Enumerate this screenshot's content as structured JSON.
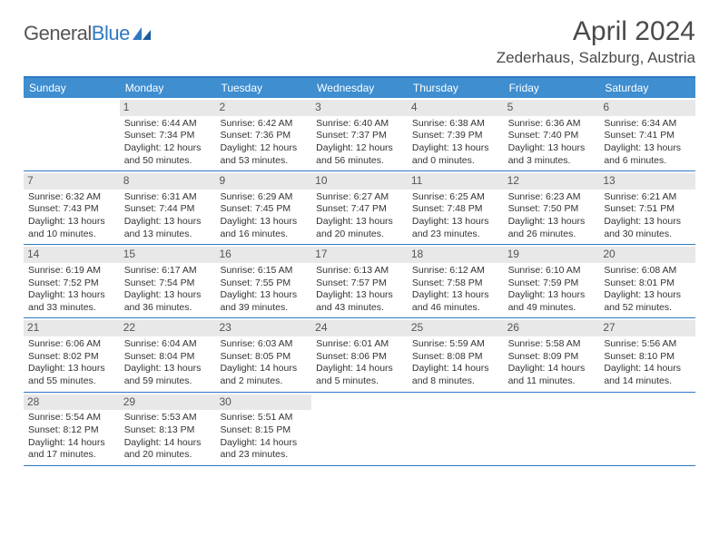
{
  "logo": {
    "part1": "General",
    "part2": "Blue"
  },
  "title": "April 2024",
  "location": "Zederhaus, Salzburg, Austria",
  "weekdays": [
    "Sunday",
    "Monday",
    "Tuesday",
    "Wednesday",
    "Thursday",
    "Friday",
    "Saturday"
  ],
  "colors": {
    "header_bar": "#3e8ed0",
    "accent": "#2f78c4",
    "daynum_bg": "#e8e8e8",
    "text": "#333333",
    "title_text": "#4a4a4a"
  },
  "layout": {
    "cols": 7,
    "rows": 5,
    "start_offset": 1,
    "days_in_month": 30
  },
  "days": [
    {
      "n": 1,
      "sr": "6:44 AM",
      "ss": "7:34 PM",
      "dl": "12 hours and 50 minutes."
    },
    {
      "n": 2,
      "sr": "6:42 AM",
      "ss": "7:36 PM",
      "dl": "12 hours and 53 minutes."
    },
    {
      "n": 3,
      "sr": "6:40 AM",
      "ss": "7:37 PM",
      "dl": "12 hours and 56 minutes."
    },
    {
      "n": 4,
      "sr": "6:38 AM",
      "ss": "7:39 PM",
      "dl": "13 hours and 0 minutes."
    },
    {
      "n": 5,
      "sr": "6:36 AM",
      "ss": "7:40 PM",
      "dl": "13 hours and 3 minutes."
    },
    {
      "n": 6,
      "sr": "6:34 AM",
      "ss": "7:41 PM",
      "dl": "13 hours and 6 minutes."
    },
    {
      "n": 7,
      "sr": "6:32 AM",
      "ss": "7:43 PM",
      "dl": "13 hours and 10 minutes."
    },
    {
      "n": 8,
      "sr": "6:31 AM",
      "ss": "7:44 PM",
      "dl": "13 hours and 13 minutes."
    },
    {
      "n": 9,
      "sr": "6:29 AM",
      "ss": "7:45 PM",
      "dl": "13 hours and 16 minutes."
    },
    {
      "n": 10,
      "sr": "6:27 AM",
      "ss": "7:47 PM",
      "dl": "13 hours and 20 minutes."
    },
    {
      "n": 11,
      "sr": "6:25 AM",
      "ss": "7:48 PM",
      "dl": "13 hours and 23 minutes."
    },
    {
      "n": 12,
      "sr": "6:23 AM",
      "ss": "7:50 PM",
      "dl": "13 hours and 26 minutes."
    },
    {
      "n": 13,
      "sr": "6:21 AM",
      "ss": "7:51 PM",
      "dl": "13 hours and 30 minutes."
    },
    {
      "n": 14,
      "sr": "6:19 AM",
      "ss": "7:52 PM",
      "dl": "13 hours and 33 minutes."
    },
    {
      "n": 15,
      "sr": "6:17 AM",
      "ss": "7:54 PM",
      "dl": "13 hours and 36 minutes."
    },
    {
      "n": 16,
      "sr": "6:15 AM",
      "ss": "7:55 PM",
      "dl": "13 hours and 39 minutes."
    },
    {
      "n": 17,
      "sr": "6:13 AM",
      "ss": "7:57 PM",
      "dl": "13 hours and 43 minutes."
    },
    {
      "n": 18,
      "sr": "6:12 AM",
      "ss": "7:58 PM",
      "dl": "13 hours and 46 minutes."
    },
    {
      "n": 19,
      "sr": "6:10 AM",
      "ss": "7:59 PM",
      "dl": "13 hours and 49 minutes."
    },
    {
      "n": 20,
      "sr": "6:08 AM",
      "ss": "8:01 PM",
      "dl": "13 hours and 52 minutes."
    },
    {
      "n": 21,
      "sr": "6:06 AM",
      "ss": "8:02 PM",
      "dl": "13 hours and 55 minutes."
    },
    {
      "n": 22,
      "sr": "6:04 AM",
      "ss": "8:04 PM",
      "dl": "13 hours and 59 minutes."
    },
    {
      "n": 23,
      "sr": "6:03 AM",
      "ss": "8:05 PM",
      "dl": "14 hours and 2 minutes."
    },
    {
      "n": 24,
      "sr": "6:01 AM",
      "ss": "8:06 PM",
      "dl": "14 hours and 5 minutes."
    },
    {
      "n": 25,
      "sr": "5:59 AM",
      "ss": "8:08 PM",
      "dl": "14 hours and 8 minutes."
    },
    {
      "n": 26,
      "sr": "5:58 AM",
      "ss": "8:09 PM",
      "dl": "14 hours and 11 minutes."
    },
    {
      "n": 27,
      "sr": "5:56 AM",
      "ss": "8:10 PM",
      "dl": "14 hours and 14 minutes."
    },
    {
      "n": 28,
      "sr": "5:54 AM",
      "ss": "8:12 PM",
      "dl": "14 hours and 17 minutes."
    },
    {
      "n": 29,
      "sr": "5:53 AM",
      "ss": "8:13 PM",
      "dl": "14 hours and 20 minutes."
    },
    {
      "n": 30,
      "sr": "5:51 AM",
      "ss": "8:15 PM",
      "dl": "14 hours and 23 minutes."
    }
  ],
  "labels": {
    "sunrise": "Sunrise:",
    "sunset": "Sunset:",
    "daylight": "Daylight:"
  }
}
